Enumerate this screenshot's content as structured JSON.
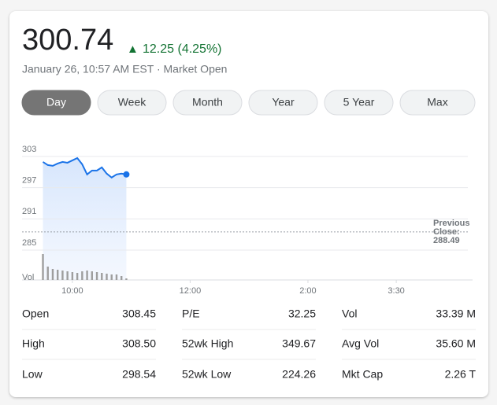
{
  "header": {
    "price": "300.74",
    "change": "12.25 (4.25%)",
    "timestamp": "January 26, 10:57 AM EST · Market Open"
  },
  "tabs": [
    "Day",
    "Week",
    "Month",
    "Year",
    "5 Year",
    "Max"
  ],
  "chart_data": {
    "type": "line",
    "x": [
      "9:30",
      "9:35",
      "9:40",
      "9:45",
      "9:50",
      "9:55",
      "10:00",
      "10:05",
      "10:10",
      "10:15",
      "10:20",
      "10:25",
      "10:30",
      "10:35",
      "10:40",
      "10:45",
      "10:50",
      "10:55"
    ],
    "series": [
      {
        "color": "#1a73e8",
        "values": [
          301.95,
          301.35,
          301.2,
          301.65,
          301.95,
          301.8,
          302.25,
          302.7,
          301.5,
          299.55,
          300.3,
          300.3,
          300.9,
          299.7,
          298.95,
          299.55,
          299.7,
          299.55
        ]
      }
    ],
    "volume": {
      "label": "Vol",
      "color": "#9e9e9e",
      "values": [
        33,
        17,
        14,
        13,
        12,
        11,
        10,
        9,
        11,
        12,
        11,
        10,
        9,
        8,
        7,
        7,
        5,
        2
      ]
    },
    "ylim": [
      285,
      303
    ],
    "yticks": [
      303,
      297,
      291,
      285
    ],
    "xlim": [
      "9:30",
      "4:00"
    ],
    "xticks": [
      "10:00",
      "12:00",
      "2:00",
      "3:30"
    ],
    "previous_close": {
      "label": "Previous Close:",
      "value": 288.49
    },
    "grid": true
  },
  "stats": [
    [
      {
        "label": "Open",
        "value": "308.45"
      },
      {
        "label": "High",
        "value": "308.50"
      },
      {
        "label": "Low",
        "value": "298.54"
      }
    ],
    [
      {
        "label": "P/E",
        "value": "32.25"
      },
      {
        "label": "52wk High",
        "value": "349.67"
      },
      {
        "label": "52wk Low",
        "value": "224.26"
      }
    ],
    [
      {
        "label": "Vol",
        "value": "33.39 M"
      },
      {
        "label": "Avg Vol",
        "value": "35.60 M"
      },
      {
        "label": "Mkt Cap",
        "value": "2.26 T"
      }
    ]
  ]
}
